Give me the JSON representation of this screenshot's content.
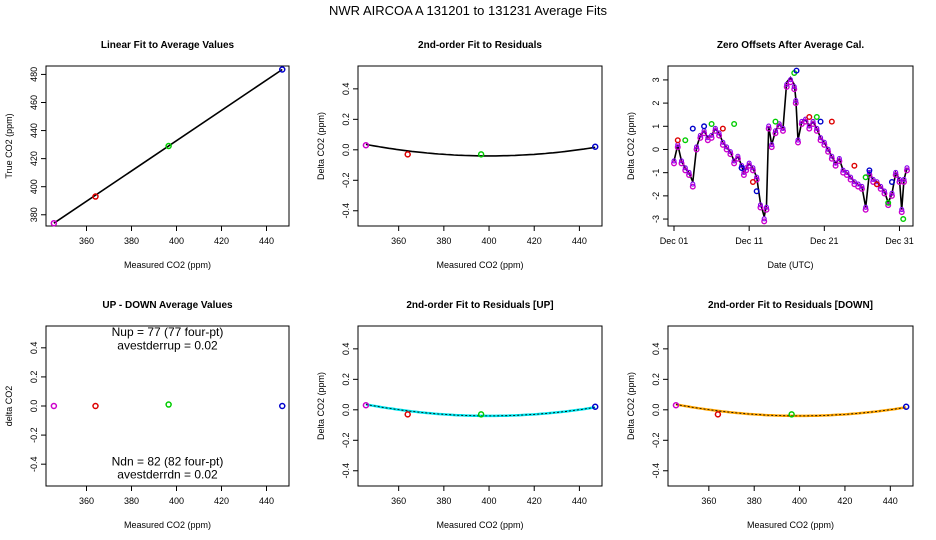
{
  "title": "NWR   AIRCOA A   131201 to 131231   Average Fits",
  "colors": {
    "red": "#dd0000",
    "green": "#00cc00",
    "blue": "#0000cc",
    "magenta": "#cc00cc",
    "purple": "#8800ee",
    "black": "#000000",
    "cyan": "#00e5ee",
    "orange": "#ffa500"
  },
  "chart_data": [
    {
      "id": "p1",
      "type": "scatter",
      "title": "Linear Fit to Average Values",
      "xlabel": "Measured CO2 (ppm)",
      "ylabel": "True CO2 (ppm)",
      "xlim": [
        342,
        450
      ],
      "ylim": [
        372,
        486
      ],
      "xticks": [
        {
          "v": 360,
          "label": "360"
        },
        {
          "v": 380,
          "label": "380"
        },
        {
          "v": 400,
          "label": "400"
        },
        {
          "v": 420,
          "label": "420"
        },
        {
          "v": 440,
          "label": "440"
        }
      ],
      "yticks": [
        {
          "v": 380,
          "label": "380"
        },
        {
          "v": 400,
          "label": "400"
        },
        {
          "v": 420,
          "label": "420"
        },
        {
          "v": 440,
          "label": "440"
        },
        {
          "v": 460,
          "label": "460"
        },
        {
          "v": 480,
          "label": "480"
        }
      ],
      "points": [
        {
          "x": 345.5,
          "y": 374.0,
          "color": "magenta"
        },
        {
          "x": 364.0,
          "y": 393.0,
          "color": "red"
        },
        {
          "x": 396.5,
          "y": 429.0,
          "color": "green"
        },
        {
          "x": 447.0,
          "y": 483.5,
          "color": "blue"
        }
      ],
      "lines": [
        {
          "color": "black",
          "kind": "linear",
          "a": 0,
          "b": 1.08,
          "x0": 345.5,
          "y0": 374.0,
          "x1": 447.0,
          "y1": 483.5
        }
      ]
    },
    {
      "id": "p2",
      "type": "scatter",
      "title": "2nd-order Fit to Residuals",
      "xlabel": "Measured CO2 (ppm)",
      "ylabel": "Delta CO2 (ppm)",
      "xlim": [
        342,
        450
      ],
      "ylim": [
        -0.5,
        0.55
      ],
      "xticks": [
        {
          "v": 360,
          "label": "360"
        },
        {
          "v": 380,
          "label": "380"
        },
        {
          "v": 400,
          "label": "400"
        },
        {
          "v": 420,
          "label": "420"
        },
        {
          "v": 440,
          "label": "440"
        }
      ],
      "yticks": [
        {
          "v": -0.4,
          "label": "-0.4"
        },
        {
          "v": -0.2,
          "label": "-0.2"
        },
        {
          "v": 0.0,
          "label": "0.0"
        },
        {
          "v": 0.2,
          "label": "0.2"
        },
        {
          "v": 0.4,
          "label": "0.4"
        }
      ],
      "points": [
        {
          "x": 345.5,
          "y": 0.03,
          "color": "magenta"
        },
        {
          "x": 364.0,
          "y": -0.03,
          "color": "red"
        },
        {
          "x": 396.5,
          "y": -0.03,
          "color": "green"
        },
        {
          "x": 447.0,
          "y": 0.02,
          "color": "blue"
        }
      ],
      "lines": [
        {
          "color": "black",
          "kind": "quad",
          "vertex_x": 400,
          "vertex_y": -0.04,
          "k": 2.55e-05,
          "x0": 345.5,
          "x1": 447.0
        }
      ]
    },
    {
      "id": "p3",
      "type": "line",
      "title": "Zero Offsets After Average Cal.",
      "xlabel": "Date (UTC)",
      "ylabel": "Delta CO2 (ppm)",
      "xlim": [
        -0.8,
        31.8
      ],
      "ylim": [
        -3.3,
        3.6
      ],
      "xticks": [
        {
          "v": 0,
          "label": "Dec 01"
        },
        {
          "v": 10,
          "label": "Dec 11"
        },
        {
          "v": 20,
          "label": "Dec 21"
        },
        {
          "v": 30,
          "label": "Dec 31"
        }
      ],
      "yticks": [
        {
          "v": -3,
          "label": "-3"
        },
        {
          "v": -2,
          "label": "-2"
        },
        {
          "v": -1,
          "label": "-1"
        },
        {
          "v": 0,
          "label": "0"
        },
        {
          "v": 1,
          "label": "1"
        },
        {
          "v": 2,
          "label": "2"
        },
        {
          "v": 3,
          "label": "3"
        }
      ],
      "series": [
        {
          "name": "zero-offset-black",
          "color": "black",
          "x": [
            0,
            0.5,
            1,
            1.5,
            2,
            2.5,
            3,
            3.5,
            4,
            4.5,
            5,
            5.5,
            6,
            6.5,
            7,
            7.5,
            8,
            8.5,
            9,
            9.3,
            9.6,
            10,
            10.5,
            11,
            11.5,
            12,
            12.3,
            12.6,
            13,
            13.5,
            14,
            14.5,
            15,
            15.5,
            16,
            16.2,
            16.5,
            17,
            17.5,
            18,
            18.5,
            19,
            19.5,
            20,
            20.5,
            21,
            21.5,
            22,
            22.5,
            23,
            23.5,
            24,
            24.5,
            25,
            25.5,
            26,
            26.5,
            27,
            27.5,
            28,
            28.5,
            29,
            29.5,
            30,
            30.3,
            30.6,
            31
          ],
          "values": [
            -0.5,
            0.2,
            -0.5,
            -0.8,
            -1.0,
            -1.4,
            0.1,
            0.6,
            0.8,
            0.5,
            0.6,
            0.9,
            0.7,
            0.3,
            0.1,
            -0.1,
            -0.5,
            -0.3,
            -0.7,
            -1.0,
            -0.8,
            -0.6,
            -0.8,
            -1.2,
            -2.3,
            -2.9,
            -2.4,
            1.0,
            0.2,
            0.8,
            1.1,
            0.9,
            2.9,
            3.1,
            2.8,
            2.2,
            0.4,
            1.2,
            1.3,
            1.0,
            1.2,
            0.9,
            0.5,
            0.3,
            0.0,
            -0.3,
            -0.6,
            -0.4,
            -0.9,
            -1.0,
            -1.2,
            -1.4,
            -1.5,
            -1.6,
            -2.5,
            -1.0,
            -1.3,
            -1.4,
            -1.6,
            -1.8,
            -2.3,
            -1.9,
            -1.0,
            -1.3,
            -2.6,
            -1.3,
            -0.8
          ]
        },
        {
          "name": "zero-offset-magenta",
          "color": "magenta",
          "x": [
            0,
            0.5,
            1,
            1.5,
            2,
            2.5,
            3,
            3.5,
            4,
            4.5,
            5,
            5.5,
            6,
            6.5,
            7,
            7.5,
            8,
            8.5,
            9,
            9.3,
            9.6,
            10,
            10.5,
            11,
            11.5,
            12,
            12.3,
            12.6,
            13,
            13.5,
            14,
            14.5,
            15,
            15.5,
            16,
            16.2,
            16.5,
            17,
            17.5,
            18,
            18.5,
            19,
            19.5,
            20,
            20.5,
            21,
            21.5,
            22,
            22.5,
            23,
            23.5,
            24,
            24.5,
            25,
            25.5,
            26,
            26.5,
            27,
            27.5,
            28,
            28.5,
            29,
            29.5,
            30,
            30.3,
            30.6,
            31
          ],
          "values": [
            -0.6,
            0.1,
            -0.6,
            -0.9,
            -1.1,
            -1.6,
            0.0,
            0.5,
            0.7,
            0.4,
            0.5,
            0.8,
            0.6,
            0.2,
            0.0,
            -0.2,
            -0.6,
            -0.4,
            -0.8,
            -1.1,
            -0.9,
            -0.7,
            -0.9,
            -1.3,
            -2.5,
            -3.1,
            -2.6,
            0.9,
            0.1,
            0.7,
            1.0,
            0.8,
            2.7,
            2.9,
            2.6,
            2.0,
            0.3,
            1.1,
            1.2,
            0.9,
            1.1,
            0.8,
            0.4,
            0.2,
            -0.1,
            -0.4,
            -0.7,
            -0.5,
            -1.0,
            -1.1,
            -1.3,
            -1.5,
            -1.6,
            -1.7,
            -2.6,
            -1.1,
            -1.4,
            -1.5,
            -1.7,
            -1.9,
            -2.4,
            -2.0,
            -1.1,
            -1.4,
            -2.7,
            -1.4,
            -0.9
          ]
        },
        {
          "name": "zero-offset-green",
          "color": "green",
          "x": [
            1.5,
            5,
            8,
            13.5,
            16,
            19,
            25.5,
            28.5,
            30.5
          ],
          "values": [
            0.4,
            1.1,
            1.1,
            1.2,
            3.3,
            1.4,
            -1.2,
            -2.3,
            -3.0
          ]
        },
        {
          "name": "zero-offset-blue",
          "color": "blue",
          "x": [
            2.5,
            4,
            9,
            11,
            16.3,
            19.5,
            26,
            29
          ],
          "values": [
            0.9,
            1.0,
            -0.8,
            -1.8,
            3.4,
            1.2,
            -0.9,
            -1.4
          ]
        },
        {
          "name": "zero-offset-red",
          "color": "red",
          "x": [
            0.5,
            6.5,
            10.5,
            18,
            21,
            24,
            27
          ],
          "values": [
            0.4,
            0.9,
            -1.4,
            1.4,
            1.2,
            -0.7,
            -1.5
          ]
        }
      ]
    },
    {
      "id": "p4",
      "type": "scatter",
      "title": "UP - DOWN Average Values",
      "xlabel": "Measured CO2 (ppm)",
      "ylabel": "delta CO2",
      "xlim": [
        342,
        450
      ],
      "ylim": [
        -0.55,
        0.55
      ],
      "xticks": [
        {
          "v": 360,
          "label": "360"
        },
        {
          "v": 380,
          "label": "380"
        },
        {
          "v": 400,
          "label": "400"
        },
        {
          "v": 420,
          "label": "420"
        },
        {
          "v": 440,
          "label": "440"
        }
      ],
      "yticks": [
        {
          "v": -0.4,
          "label": "-0.4"
        },
        {
          "v": -0.2,
          "label": "-0.2"
        },
        {
          "v": 0.0,
          "label": "0.0"
        },
        {
          "v": 0.2,
          "label": "0.2"
        },
        {
          "v": 0.4,
          "label": "0.4"
        }
      ],
      "points": [
        {
          "x": 345.5,
          "y": 0.0,
          "color": "magenta"
        },
        {
          "x": 364.0,
          "y": 0.0,
          "color": "red"
        },
        {
          "x": 396.5,
          "y": 0.01,
          "color": "green"
        },
        {
          "x": 447.0,
          "y": 0.0,
          "color": "blue"
        }
      ],
      "lines": [],
      "annotations": [
        {
          "text": "Nup = 77 (77 four-pt)",
          "x": 396,
          "y": 0.48
        },
        {
          "text": "avestderrup =  0.02",
          "x": 396,
          "y": 0.39
        },
        {
          "text": "Ndn = 82 (82 four-pt)",
          "x": 396,
          "y": -0.41
        },
        {
          "text": "avestderrdn =  0.02",
          "x": 396,
          "y": -0.5
        }
      ]
    },
    {
      "id": "p5",
      "type": "scatter",
      "title": "2nd-order Fit to Residuals [UP]",
      "xlabel": "Measured CO2 (ppm)",
      "ylabel": "Delta CO2 (ppm)",
      "xlim": [
        342,
        450
      ],
      "ylim": [
        -0.5,
        0.55
      ],
      "xticks": [
        {
          "v": 360,
          "label": "360"
        },
        {
          "v": 380,
          "label": "380"
        },
        {
          "v": 400,
          "label": "400"
        },
        {
          "v": 420,
          "label": "420"
        },
        {
          "v": 440,
          "label": "440"
        }
      ],
      "yticks": [
        {
          "v": -0.4,
          "label": "-0.4"
        },
        {
          "v": -0.2,
          "label": "-0.2"
        },
        {
          "v": 0.0,
          "label": "0.0"
        },
        {
          "v": 0.2,
          "label": "0.2"
        },
        {
          "v": 0.4,
          "label": "0.4"
        }
      ],
      "points": [
        {
          "x": 345.5,
          "y": 0.03,
          "color": "magenta"
        },
        {
          "x": 364.0,
          "y": -0.03,
          "color": "red"
        },
        {
          "x": 396.5,
          "y": -0.03,
          "color": "green"
        },
        {
          "x": 447.0,
          "y": 0.02,
          "color": "blue"
        }
      ],
      "lines": [
        {
          "color": "cyan",
          "kind": "quad",
          "vertex_x": 400,
          "vertex_y": -0.04,
          "k": 2.55e-05,
          "x0": 345.5,
          "x1": 447.0,
          "width": 2.5
        },
        {
          "color": "black",
          "kind": "quad",
          "vertex_x": 400,
          "vertex_y": -0.04,
          "k": 2.55e-05,
          "x0": 345.5,
          "x1": 447.0,
          "width": 0.8,
          "dash": "2,2"
        }
      ]
    },
    {
      "id": "p6",
      "type": "scatter",
      "title": "2nd-order Fit to Residuals [DOWN]",
      "xlabel": "Measured CO2 (ppm)",
      "ylabel": "Delta CO2 (ppm)",
      "xlim": [
        342,
        450
      ],
      "ylim": [
        -0.5,
        0.55
      ],
      "xticks": [
        {
          "v": 360,
          "label": "360"
        },
        {
          "v": 380,
          "label": "380"
        },
        {
          "v": 400,
          "label": "400"
        },
        {
          "v": 420,
          "label": "420"
        },
        {
          "v": 440,
          "label": "440"
        }
      ],
      "yticks": [
        {
          "v": -0.4,
          "label": "-0.4"
        },
        {
          "v": -0.2,
          "label": "-0.2"
        },
        {
          "v": 0.0,
          "label": "0.0"
        },
        {
          "v": 0.2,
          "label": "0.2"
        },
        {
          "v": 0.4,
          "label": "0.4"
        }
      ],
      "points": [
        {
          "x": 345.5,
          "y": 0.03,
          "color": "magenta"
        },
        {
          "x": 364.0,
          "y": -0.03,
          "color": "red"
        },
        {
          "x": 396.5,
          "y": -0.03,
          "color": "green"
        },
        {
          "x": 447.0,
          "y": 0.02,
          "color": "blue"
        }
      ],
      "lines": [
        {
          "color": "orange",
          "kind": "quad",
          "vertex_x": 400,
          "vertex_y": -0.04,
          "k": 2.55e-05,
          "x0": 345.5,
          "x1": 447.0,
          "width": 2.5
        },
        {
          "color": "black",
          "kind": "quad",
          "vertex_x": 400,
          "vertex_y": -0.04,
          "k": 2.55e-05,
          "x0": 345.5,
          "x1": 447.0,
          "width": 0.8,
          "dash": "2,2"
        }
      ]
    }
  ]
}
